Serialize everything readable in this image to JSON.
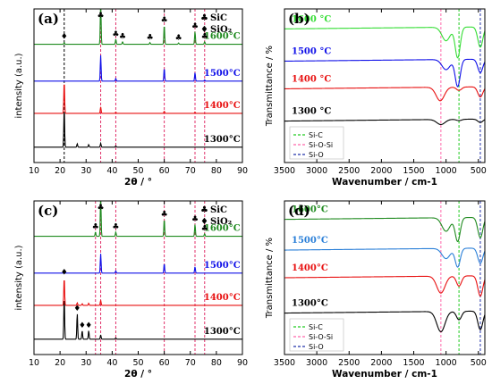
{
  "figure": {
    "panels": [
      {
        "label": "(a)",
        "phase_legend": [
          {
            "symbol": "♣",
            "text": "SiC"
          },
          {
            "symbol": "♦",
            "text": "SiO₂"
          }
        ]
      },
      {
        "label": "(b)",
        "ref_legend": [
          {
            "text": "Si-C",
            "color": "#22cc22"
          },
          {
            "text": "Si-O-Si",
            "color": "#ff66aa"
          },
          {
            "text": "Si-O",
            "color": "#2233aa"
          }
        ]
      },
      {
        "label": "(c)",
        "phase_legend": [
          {
            "symbol": "♣",
            "text": "SiC"
          },
          {
            "symbol": "♦",
            "text": "SiO₂"
          }
        ]
      },
      {
        "label": "(d)",
        "ref_legend": [
          {
            "text": "Si-C",
            "color": "#22cc22"
          },
          {
            "text": "Si-O-Si",
            "color": "#ff66aa"
          },
          {
            "text": "Si-O",
            "color": "#2233aa"
          }
        ]
      }
    ]
  },
  "chart_data": [
    {
      "type": "line",
      "panel": "(a)",
      "xlabel": "2θ / °",
      "ylabel": "intensity (a.u.)",
      "xlim": [
        10,
        90
      ],
      "xticks": [
        10,
        20,
        30,
        40,
        50,
        60,
        70,
        80,
        90
      ],
      "vlines": [
        {
          "x": 21.6,
          "color": "#000000"
        },
        {
          "x": 35.6,
          "color": "#e0306a"
        },
        {
          "x": 41.4,
          "color": "#e0306a"
        },
        {
          "x": 60.0,
          "color": "#e0306a"
        },
        {
          "x": 71.8,
          "color": "#e0306a"
        },
        {
          "x": 75.5,
          "color": "#e0306a"
        }
      ],
      "markers": [
        {
          "x": 21.6,
          "symbol": "♦"
        },
        {
          "x": 35.6,
          "symbol": "♣"
        },
        {
          "x": 41.4,
          "symbol": "♣"
        },
        {
          "x": 44.0,
          "symbol": "♣"
        },
        {
          "x": 54.5,
          "symbol": "♣"
        },
        {
          "x": 60.0,
          "symbol": "♣"
        },
        {
          "x": 65.5,
          "symbol": "♣"
        },
        {
          "x": 71.8,
          "symbol": "♣"
        },
        {
          "x": 75.5,
          "symbol": "♣"
        }
      ],
      "series": [
        {
          "name": "1300°C",
          "color": "#000000",
          "peaks": [
            [
              21.6,
              9.0
            ],
            [
              26.6,
              0.8
            ],
            [
              31.0,
              0.6
            ],
            [
              35.6,
              0.9
            ],
            [
              41.4,
              0.3
            ]
          ]
        },
        {
          "name": "1400°C",
          "color": "#e81010",
          "peaks": [
            [
              21.6,
              7.5
            ],
            [
              35.6,
              1.5
            ],
            [
              41.4,
              0.3
            ],
            [
              60.0,
              0.5
            ],
            [
              71.8,
              0.3
            ]
          ]
        },
        {
          "name": "1500°C",
          "color": "#1010e8",
          "peaks": [
            [
              35.6,
              6.0
            ],
            [
              41.4,
              0.6
            ],
            [
              60.0,
              3.0
            ],
            [
              71.8,
              2.0
            ],
            [
              75.5,
              0.3
            ]
          ]
        },
        {
          "name": "1600°C",
          "color": "#1f8a1f",
          "peaks": [
            [
              21.6,
              0.4
            ],
            [
              35.6,
              10.0
            ],
            [
              41.4,
              1.2
            ],
            [
              44.0,
              0.6
            ],
            [
              54.5,
              0.4
            ],
            [
              60.0,
              4.5
            ],
            [
              65.5,
              0.3
            ],
            [
              71.8,
              3.0
            ],
            [
              75.5,
              0.6
            ]
          ]
        }
      ]
    },
    {
      "type": "line",
      "panel": "(b)",
      "xlabel": "Wavenumber / cm-1",
      "ylabel": "Transmittance / %",
      "xlim": [
        3500,
        400
      ],
      "xticks": [
        3500,
        3000,
        2500,
        2000,
        1500,
        1000,
        500
      ],
      "vlines": [
        {
          "x": 1080,
          "color": "#ff66aa"
        },
        {
          "x": 800,
          "color": "#22cc22"
        },
        {
          "x": 470,
          "color": "#2233aa"
        }
      ],
      "series": [
        {
          "name": "1300 °C",
          "color": "#000000",
          "dips": [
            [
              1080,
              1.5
            ],
            [
              800,
              0.4
            ],
            [
              470,
              1.0
            ]
          ]
        },
        {
          "name": "1400 °C",
          "color": "#e81010",
          "dips": [
            [
              1090,
              4.0
            ],
            [
              800,
              1.0
            ],
            [
              470,
              3.0
            ]
          ]
        },
        {
          "name": "1500 °C",
          "color": "#1010e8",
          "dips": [
            [
              1000,
              3.0
            ],
            [
              820,
              8.0
            ],
            [
              470,
              4.0
            ]
          ]
        },
        {
          "name": "1600 °C",
          "color": "#33dd33",
          "dips": [
            [
              1000,
              4.0
            ],
            [
              820,
              9.0
            ],
            [
              470,
              6.0
            ]
          ]
        }
      ]
    },
    {
      "type": "line",
      "panel": "(c)",
      "xlabel": "2θ / °",
      "ylabel": "intensity (a.u.)",
      "xlim": [
        10,
        90
      ],
      "xticks": [
        10,
        20,
        30,
        40,
        50,
        60,
        70,
        80,
        90
      ],
      "vlines": [
        {
          "x": 33.6,
          "color": "#e0306a"
        },
        {
          "x": 35.6,
          "color": "#e0306a"
        },
        {
          "x": 41.4,
          "color": "#e0306a"
        },
        {
          "x": 60.0,
          "color": "#e0306a"
        },
        {
          "x": 71.8,
          "color": "#e0306a"
        },
        {
          "x": 75.5,
          "color": "#e0306a"
        }
      ],
      "markers": [
        {
          "x": 21.6,
          "symbol": "♦"
        },
        {
          "x": 26.6,
          "symbol": "♦"
        },
        {
          "x": 28.5,
          "symbol": "♦"
        },
        {
          "x": 31.0,
          "symbol": "♦"
        },
        {
          "x": 33.6,
          "symbol": "♣"
        },
        {
          "x": 35.6,
          "symbol": "♣"
        },
        {
          "x": 41.4,
          "symbol": "♣"
        },
        {
          "x": 60.0,
          "symbol": "♣"
        },
        {
          "x": 71.8,
          "symbol": "♣"
        },
        {
          "x": 75.5,
          "symbol": "♣"
        }
      ],
      "series": [
        {
          "name": "1300°C",
          "color": "#000000",
          "peaks": [
            [
              21.6,
              10.0
            ],
            [
              26.6,
              6.0
            ],
            [
              28.5,
              2.0
            ],
            [
              31.0,
              2.0
            ],
            [
              35.6,
              1.0
            ],
            [
              41.4,
              0.3
            ]
          ]
        },
        {
          "name": "1400°C",
          "color": "#e81010",
          "peaks": [
            [
              21.6,
              6.5
            ],
            [
              26.6,
              0.6
            ],
            [
              28.5,
              0.4
            ],
            [
              31.0,
              0.5
            ],
            [
              35.6,
              1.2
            ]
          ]
        },
        {
          "name": "1500°C",
          "color": "#1010e8",
          "peaks": [
            [
              21.6,
              0.4
            ],
            [
              35.6,
              4.5
            ],
            [
              41.4,
              0.5
            ],
            [
              60.0,
              2.2
            ],
            [
              71.8,
              1.5
            ]
          ]
        },
        {
          "name": "1600°C",
          "color": "#1f8a1f",
          "peaks": [
            [
              33.6,
              1.0
            ],
            [
              35.6,
              9.5
            ],
            [
              41.4,
              1.0
            ],
            [
              60.0,
              4.0
            ],
            [
              71.8,
              2.8
            ],
            [
              75.5,
              0.6
            ]
          ]
        }
      ]
    },
    {
      "type": "line",
      "panel": "(d)",
      "xlabel": "Wavenumber / cm-1",
      "ylabel": "Transmittance / %",
      "xlim": [
        3500,
        400
      ],
      "xticks": [
        3500,
        3000,
        2500,
        2000,
        1500,
        1000,
        500
      ],
      "vlines": [
        {
          "x": 1080,
          "color": "#ff66aa"
        },
        {
          "x": 800,
          "color": "#22cc22"
        },
        {
          "x": 470,
          "color": "#2233aa"
        }
      ],
      "series": [
        {
          "name": "1300°C",
          "color": "#000000",
          "dips": [
            [
              1080,
              6.0
            ],
            [
              800,
              2.5
            ],
            [
              470,
              5.5
            ]
          ]
        },
        {
          "name": "1400°C",
          "color": "#e81010",
          "dips": [
            [
              1080,
              5.0
            ],
            [
              800,
              3.0
            ],
            [
              470,
              6.0
            ]
          ]
        },
        {
          "name": "1500°C",
          "color": "#2a7fd8",
          "dips": [
            [
              1000,
              3.0
            ],
            [
              820,
              5.5
            ],
            [
              470,
              4.5
            ]
          ]
        },
        {
          "name": "1600°C",
          "color": "#1f8a1f",
          "dips": [
            [
              1000,
              4.0
            ],
            [
              820,
              7.0
            ],
            [
              470,
              6.0
            ]
          ]
        }
      ]
    }
  ]
}
